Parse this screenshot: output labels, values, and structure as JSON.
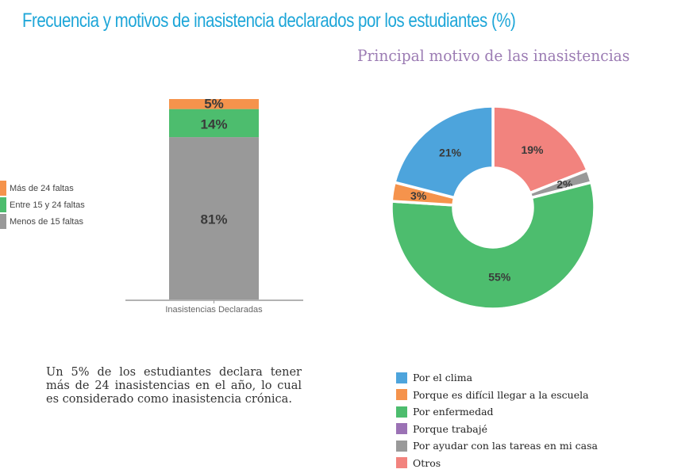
{
  "title": "Frecuencia y motivos de inasistencia declarados por los estudiantes (%)",
  "caption": "Un 5% de los estudiantes declara tener más de 24 inasistencias en el año, lo cual es considerado como inasistencia crónica.",
  "chart_data": [
    {
      "type": "bar",
      "stacked": true,
      "title": "",
      "categories": [
        "Inasistencias Declaradas"
      ],
      "xlabel": "",
      "ylabel": "",
      "ylim": [
        0,
        100
      ],
      "grid": false,
      "legend_position": "left",
      "series": [
        {
          "name": "Menos de 15 faltas",
          "values": [
            81
          ],
          "label": "81%",
          "color": "#999999"
        },
        {
          "name": "Entre 15 y 24 faltas",
          "values": [
            14
          ],
          "label": "14%",
          "color": "#4dbd6e"
        },
        {
          "name": "Más de 24 faltas",
          "values": [
            5
          ],
          "label": "5%",
          "color": "#f5934c"
        }
      ],
      "legend_order": [
        "Más de 24 faltas",
        "Entre 15 y 24 faltas",
        "Menos de 15 faltas"
      ]
    },
    {
      "type": "pie",
      "donut": true,
      "title": "Principal motivo de las inasistencias",
      "legend_position": "bottom",
      "slices": [
        {
          "name": "Otros",
          "value": 19,
          "label": "19%",
          "color": "#f2837e"
        },
        {
          "name": "Por ayudar con las tareas en mi casa",
          "value": 2,
          "label": "2%",
          "color": "#999999"
        },
        {
          "name": "Por enfermedad",
          "value": 55,
          "label": "55%",
          "color": "#4dbd6e"
        },
        {
          "name": "Porque trabajé",
          "value": 0,
          "label": "",
          "color": "#9b72b5"
        },
        {
          "name": "Porque es difícil llegar a la escuela",
          "value": 3,
          "label": "3%",
          "color": "#f5934c"
        },
        {
          "name": "Por el clima",
          "value": 21,
          "label": "21%",
          "color": "#4da4dc"
        }
      ],
      "legend": [
        {
          "name": "Por el clima",
          "color": "#4da4dc"
        },
        {
          "name": "Porque es difícil llegar a la escuela",
          "color": "#f5934c"
        },
        {
          "name": "Por enfermedad",
          "color": "#4dbd6e"
        },
        {
          "name": "Porque trabajé",
          "color": "#9b72b5"
        },
        {
          "name": "Por ayudar con las tareas en mi casa",
          "color": "#999999"
        },
        {
          "name": "Otros",
          "color": "#f2837e"
        }
      ]
    }
  ]
}
